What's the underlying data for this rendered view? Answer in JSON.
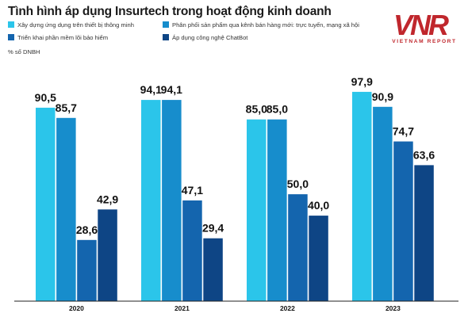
{
  "title": "Tình hình áp dụng Insurtech trong hoạt động kinh doanh",
  "unit": "% số DNBH",
  "logo": {
    "mark": "VNR",
    "sub": "VIETNAM REPORT"
  },
  "colors": [
    "#2bc5ea",
    "#178dcc",
    "#1465ae",
    "#0e4585"
  ],
  "chart_data": {
    "type": "bar",
    "categories": [
      "2020",
      "2021",
      "2022",
      "2023"
    ],
    "series": [
      {
        "name": "Xây dựng ứng dụng trên thiết bị thông minh",
        "values": [
          90.5,
          94.1,
          85.0,
          97.9
        ],
        "labels": [
          "90,5",
          "94,1",
          "85,0",
          "97,9"
        ]
      },
      {
        "name": "Phân phối sản phẩm qua kênh bán hàng mới: trực tuyến, mạng xã hội",
        "values": [
          85.7,
          94.1,
          85.0,
          90.9
        ],
        "labels": [
          "85,7",
          "94,1",
          "85,0",
          "90,9"
        ]
      },
      {
        "name": "Triển khai phần mềm lõi bảo hiểm",
        "values": [
          28.6,
          47.1,
          50.0,
          74.7
        ],
        "labels": [
          "28,6",
          "47,1",
          "50,0",
          "74,7"
        ]
      },
      {
        "name": "Áp dụng công nghệ ChatBot",
        "values": [
          42.9,
          29.4,
          40.0,
          63.6
        ],
        "labels": [
          "42,9",
          "29,4",
          "40,0",
          "63,6"
        ]
      }
    ],
    "ylim": [
      0,
      100
    ],
    "grid": false,
    "legend": "top-left"
  }
}
